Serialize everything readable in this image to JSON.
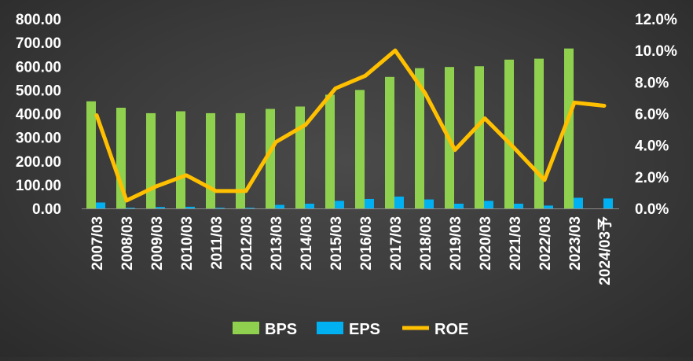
{
  "chart_data": {
    "type": "bar+line",
    "title": "",
    "categories": [
      "2007/03",
      "2008/03",
      "2009/03",
      "2010/03",
      "2011/03",
      "2012/03",
      "2013/03",
      "2014/03",
      "2015/03",
      "2016/03",
      "2017/03",
      "2018/03",
      "2019/03",
      "2020/03",
      "2021/03",
      "2022/03",
      "2023/03",
      "2024/03予"
    ],
    "series": [
      {
        "name": "BPS",
        "type": "bar",
        "axis": "left",
        "color": "#8fd14f",
        "values": [
          452,
          425,
          402,
          410,
          402,
          402,
          420,
          430,
          480,
          500,
          555,
          592,
          597,
          600,
          628,
          632,
          675,
          null
        ]
      },
      {
        "name": "EPS",
        "type": "bar",
        "axis": "left",
        "color": "#00b0f0",
        "values": [
          25,
          3,
          6,
          7,
          3,
          3,
          15,
          20,
          32,
          40,
          50,
          38,
          20,
          32,
          20,
          12,
          45,
          42
        ]
      },
      {
        "name": "ROE",
        "type": "line",
        "axis": "right",
        "color": "#ffc000",
        "values": [
          5.9,
          0.5,
          1.4,
          2.1,
          1.1,
          1.1,
          4.2,
          5.3,
          7.6,
          8.4,
          10.0,
          7.3,
          3.7,
          5.7,
          3.8,
          1.8,
          6.7,
          6.5
        ]
      }
    ],
    "y_left": {
      "min": 0,
      "max": 800,
      "step": 100,
      "tick_labels": [
        "0.00",
        "100.00",
        "200.00",
        "300.00",
        "400.00",
        "500.00",
        "600.00",
        "700.00",
        "800.00"
      ]
    },
    "y_right": {
      "min": 0,
      "max": 12,
      "step": 2,
      "tick_labels": [
        "0.0%",
        "2.0%",
        "4.0%",
        "6.0%",
        "8.0%",
        "10.0%",
        "12.0%"
      ]
    },
    "grid": false,
    "legend": {
      "position": "bottom",
      "items": [
        "BPS",
        "EPS",
        "ROE"
      ]
    }
  }
}
